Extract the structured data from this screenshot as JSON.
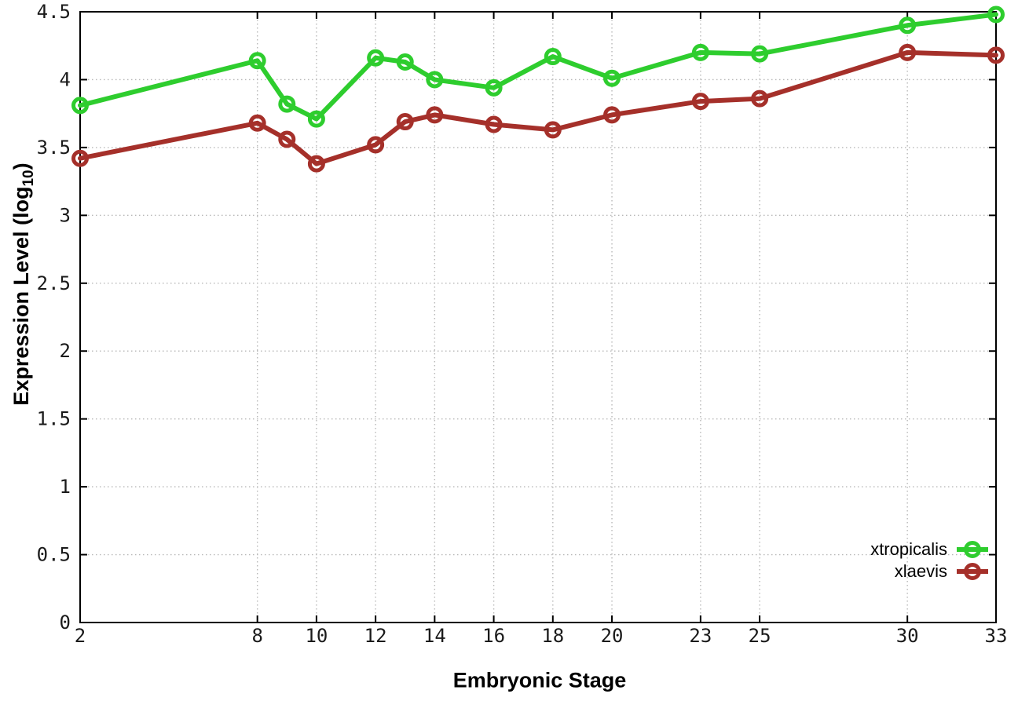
{
  "chart_data": {
    "type": "line",
    "title": "",
    "xlabel": "Embryonic Stage",
    "ylabel": "Expression Level (log10)",
    "ylabel_parts": {
      "prefix": "Expression Level (log",
      "subscript": "10",
      "suffix": ")"
    },
    "x": [
      2,
      8,
      9,
      10,
      12,
      13,
      14,
      16,
      18,
      20,
      23,
      25,
      30,
      33
    ],
    "series": [
      {
        "name": "xtropicalis",
        "color": "#2ecd2e",
        "values": [
          3.81,
          4.14,
          3.82,
          3.71,
          4.16,
          4.13,
          4.0,
          3.94,
          4.17,
          4.01,
          4.2,
          4.19,
          4.4,
          4.48
        ]
      },
      {
        "name": "xlaevis",
        "color": "#a5302a",
        "values": [
          3.42,
          3.68,
          3.56,
          3.38,
          3.52,
          3.69,
          3.74,
          3.67,
          3.63,
          3.74,
          3.84,
          3.86,
          4.2,
          4.18
        ]
      }
    ],
    "xlim": [
      2,
      33
    ],
    "ylim": [
      0,
      4.5
    ],
    "xticks": {
      "values": [
        2,
        8,
        10,
        12,
        14,
        16,
        18,
        20,
        23,
        25,
        30,
        33
      ],
      "labels": [
        "2",
        "8",
        "10",
        "12",
        "14",
        "16",
        "18",
        "20",
        "23",
        "25",
        "30",
        "33"
      ]
    },
    "yticks": {
      "values": [
        0,
        0.5,
        1,
        1.5,
        2,
        2.5,
        3,
        3.5,
        4,
        4.5
      ],
      "labels": [
        "0",
        "0.5",
        "1",
        "1.5",
        "2",
        "2.5",
        "3",
        "3.5",
        "4",
        "4.5"
      ]
    },
    "grid": true,
    "legend_position": "inside-bottom-right",
    "marker": "open-circle",
    "colors": {
      "grid": "#b8b8b8",
      "axis": "#000000",
      "background": "#ffffff"
    }
  }
}
